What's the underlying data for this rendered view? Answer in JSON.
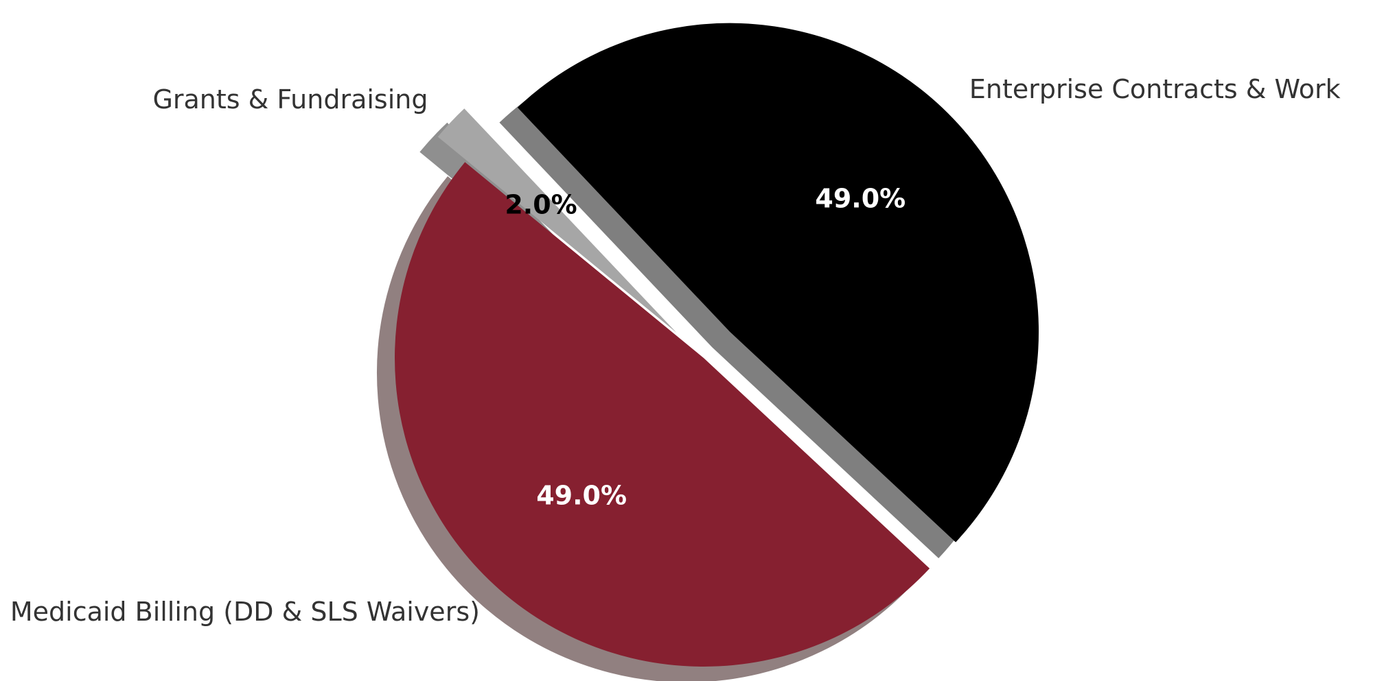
{
  "chart_data": {
    "type": "pie",
    "title": "",
    "slices": [
      {
        "label": "Enterprise Contracts & Work",
        "value": 49.0,
        "pct_label": "49.0%",
        "color": "#000000",
        "shadow": "#7f7f7f",
        "text_color": "#ffffff",
        "exploded": true
      },
      {
        "label": "Grants & Fundraising",
        "value": 2.0,
        "pct_label": "2.0%",
        "color": "#a6a6a6",
        "shadow": "#8f8f8f",
        "text_color": "#000000",
        "exploded": true
      },
      {
        "label": "Medicaid Billing (DD & SLS Waivers)",
        "value": 49.0,
        "pct_label": "49.0%",
        "color": "#862030",
        "shadow": "#918080",
        "text_color": "#ffffff",
        "exploded": false
      }
    ],
    "start_angle_deg": -43,
    "shadow": true,
    "legend": "none"
  }
}
